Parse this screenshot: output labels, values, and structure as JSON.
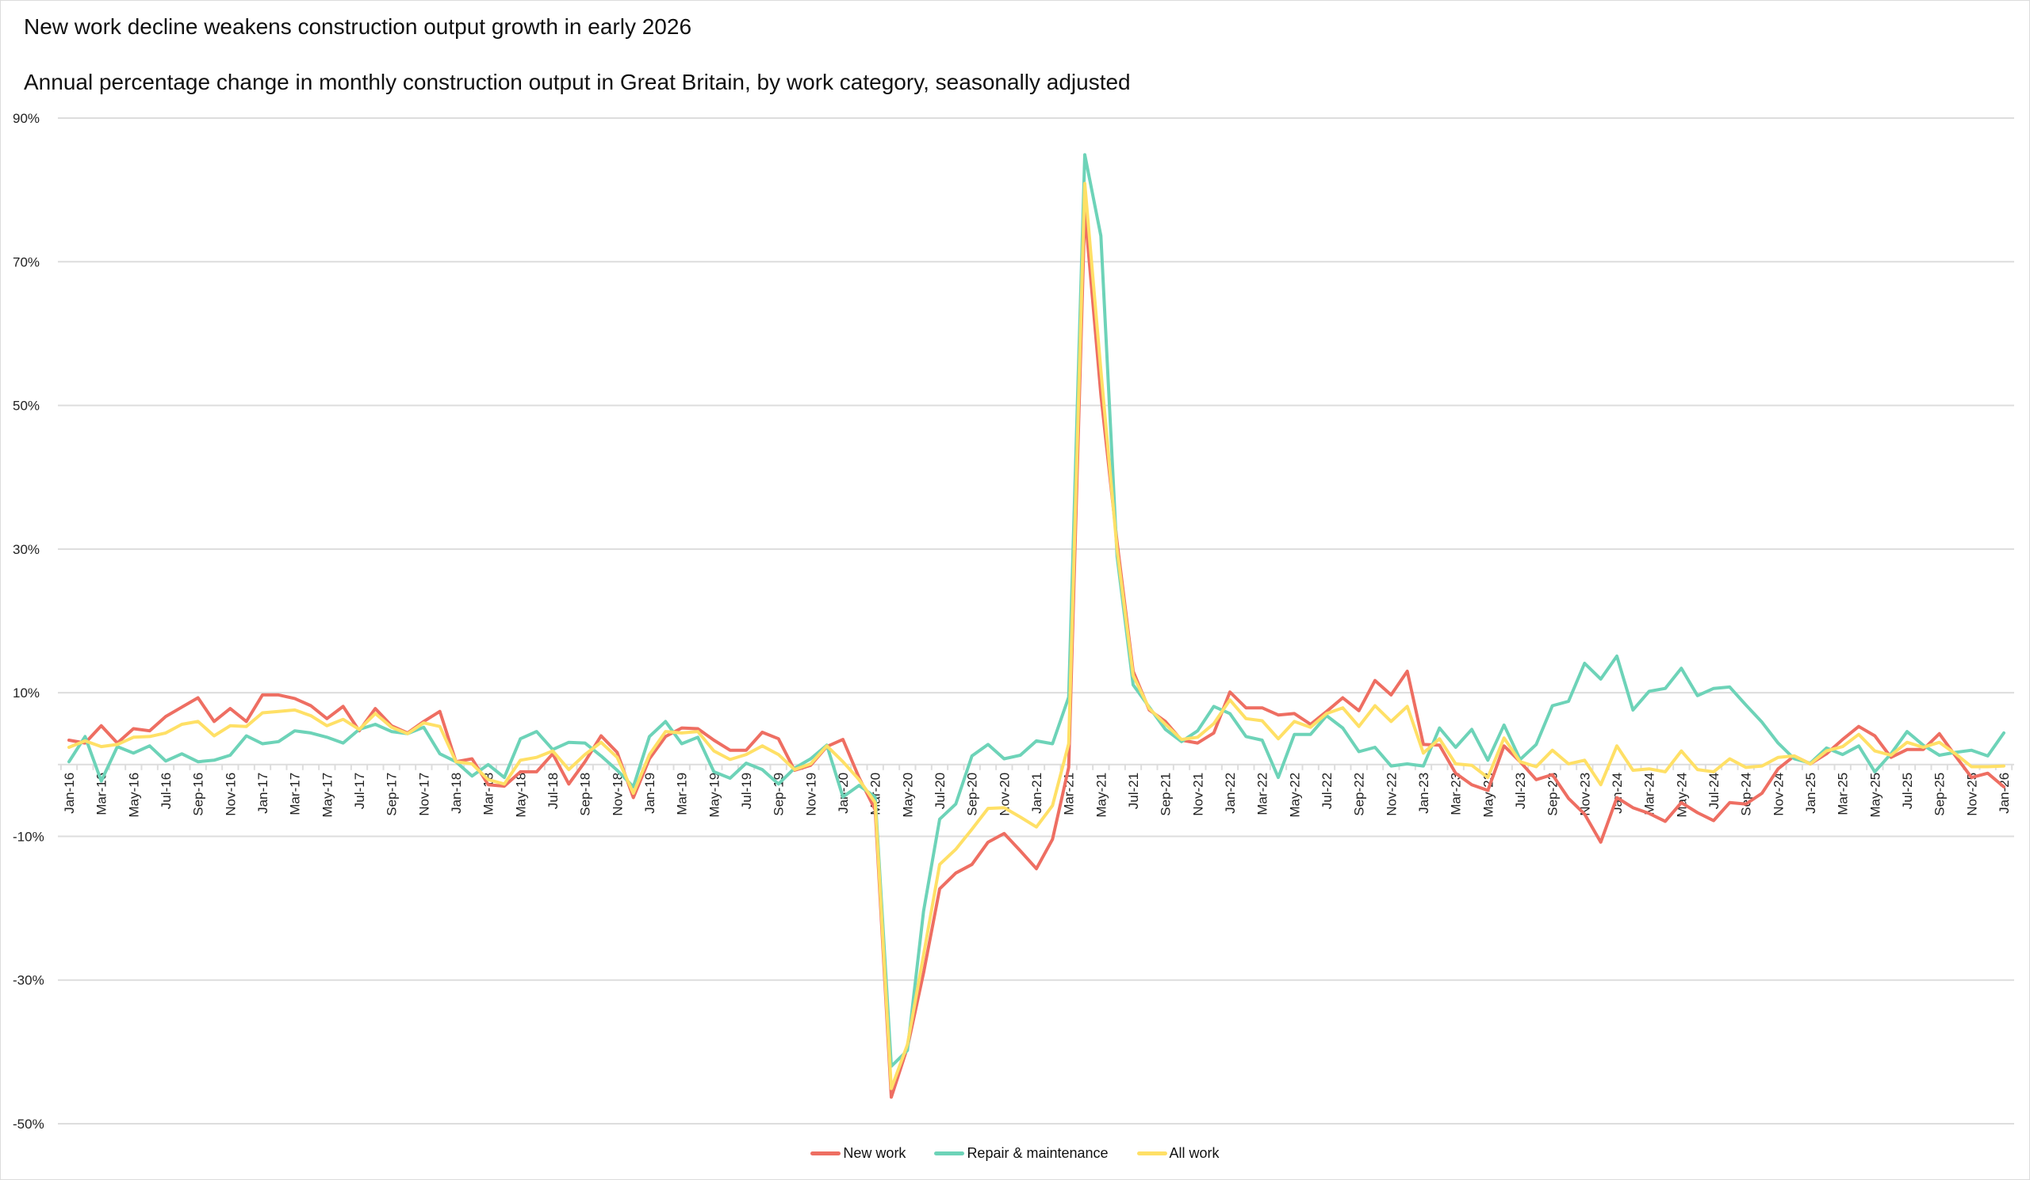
{
  "chart_data": {
    "type": "line",
    "title": "New work decline weakens construction output growth in early 2026",
    "subtitle": "Annual percentage change in monthly construction output in Great Britain, by work category, seasonally adjusted",
    "xlabel": "",
    "ylabel": "",
    "ylim": [
      -50,
      90
    ],
    "y_ticks": [
      90,
      70,
      50,
      30,
      10,
      -10,
      -30,
      -50
    ],
    "y_tick_labels": [
      "90%",
      "70%",
      "50%",
      "30%",
      "10%",
      "-10%",
      "-30%",
      "-50%"
    ],
    "grid": true,
    "legend_position": "bottom",
    "x_tick_labels": [
      "Jan-16",
      "Mar-16",
      "May-16",
      "Jul-16",
      "Sep-16",
      "Nov-16",
      "Jan-17",
      "Mar-17",
      "May-17",
      "Jul-17",
      "Sep-17",
      "Nov-17",
      "Jan-18",
      "Mar-18",
      "May-18",
      "Jul-18",
      "Sep-18",
      "Nov-18",
      "Jan-19",
      "Mar-19",
      "May-19",
      "Jul-19",
      "Sep-19",
      "Nov-19",
      "Jan-20",
      "Mar-20",
      "May-20",
      "Jul-20",
      "Sep-20",
      "Nov-20",
      "Jan-21",
      "Mar-21",
      "May-21",
      "Jul-21",
      "Sep-21",
      "Nov-21",
      "Jan-22",
      "Mar-22",
      "May-22",
      "Jul-22",
      "Sep-22",
      "Nov-22",
      "Jan-23",
      "Mar-23",
      "May-23",
      "Jul-23",
      "Sep-23",
      "Nov-23",
      "Jan-24",
      "Mar-24",
      "May-24",
      "Jul-24",
      "Sep-24",
      "Nov-24",
      "Jan-25",
      "Mar-25",
      "May-25",
      "Jul-25",
      "Sep-25",
      "Nov-25",
      "Jan-26"
    ],
    "series": [
      {
        "name": "New work",
        "color": "#EE6E62",
        "values": [
          3.4,
          3.0,
          5.4,
          3.0,
          5.0,
          4.7,
          6.7,
          8.0,
          9.3,
          6.0,
          7.8,
          6.0,
          9.7,
          9.7,
          9.2,
          8.2,
          6.4,
          8.1,
          4.7,
          7.8,
          5.4,
          4.4,
          6.0,
          7.4,
          0.4,
          0.8,
          -2.8,
          -3.0,
          -1.0,
          -1.0,
          1.5,
          -2.7,
          0.4,
          4.0,
          1.7,
          -4.6,
          0.8,
          3.9,
          5.1,
          5.0,
          3.4,
          2.0,
          2.0,
          4.5,
          3.6,
          -0.8,
          -0.1,
          2.5,
          3.5,
          -1.8,
          -6.3,
          -46.3,
          -39.4,
          -29.0,
          -17.3,
          -15.1,
          -13.9,
          -10.8,
          -9.6,
          -12.0,
          -14.5,
          -10.4,
          -0.4,
          77.2,
          51.5,
          31.0,
          13.0,
          7.6,
          6.0,
          3.4,
          3.0,
          4.4,
          10.1,
          7.9,
          7.9,
          6.9,
          7.1,
          5.6,
          7.4,
          9.3,
          7.5,
          11.7,
          9.7,
          13.0,
          2.8,
          2.7,
          -1.2,
          -2.8,
          -3.6,
          2.6,
          0.4,
          -2.1,
          -1.4,
          -4.7,
          -6.9,
          -10.8,
          -4.6,
          -6.0,
          -6.8,
          -7.9,
          -5.3,
          -6.7,
          -7.8,
          -5.3,
          -5.5,
          -4.0,
          -0.6,
          1.2,
          0.1,
          1.5,
          3.5,
          5.3,
          4.0,
          1.0,
          2.1,
          2.1,
          4.3,
          1.2,
          -1.8,
          -1.2,
          -3.1
        ]
      },
      {
        "name": "Repair & maintenance",
        "color": "#6DD3B8",
        "values": [
          0.4,
          3.9,
          -2.3,
          2.5,
          1.6,
          2.6,
          0.5,
          1.5,
          0.4,
          0.6,
          1.3,
          4.0,
          2.9,
          3.2,
          4.7,
          4.4,
          3.8,
          3.0,
          4.9,
          5.6,
          4.6,
          4.3,
          5.2,
          1.5,
          0.4,
          -1.6,
          0.0,
          -1.8,
          3.6,
          4.6,
          2.1,
          3.1,
          3.0,
          1.2,
          -0.8,
          -3.1,
          3.9,
          6.0,
          2.9,
          3.8,
          -1.0,
          -1.9,
          0.2,
          -0.7,
          -2.7,
          -0.5,
          0.8,
          2.7,
          -4.5,
          -2.9,
          -4.5,
          -42.0,
          -39.8,
          -20.4,
          -7.6,
          -5.5,
          1.2,
          2.8,
          0.8,
          1.3,
          3.3,
          2.9,
          9.4,
          84.9,
          73.6,
          29.0,
          11.1,
          8.0,
          4.9,
          3.2,
          4.7,
          8.1,
          7.1,
          3.9,
          3.4,
          -1.8,
          4.2,
          4.2,
          6.8,
          5.1,
          1.8,
          2.4,
          -0.2,
          0.1,
          -0.2,
          5.1,
          2.4,
          4.9,
          0.6,
          5.5,
          0.7,
          2.8,
          8.2,
          8.8,
          14.1,
          11.9,
          15.1,
          7.6,
          10.2,
          10.6,
          13.4,
          9.6,
          10.6,
          10.8,
          8.3,
          5.9,
          3.0,
          0.8,
          0.2,
          2.3,
          1.4,
          2.6,
          -1.0,
          1.5,
          4.6,
          2.7,
          1.3,
          1.7,
          2.0,
          1.2,
          4.4
        ]
      },
      {
        "name": "All work",
        "color": "#FFE066",
        "values": [
          2.4,
          3.3,
          2.5,
          2.8,
          3.8,
          3.9,
          4.4,
          5.6,
          6.0,
          4.0,
          5.4,
          5.3,
          7.2,
          7.4,
          7.6,
          6.8,
          5.4,
          6.3,
          4.9,
          7.1,
          5.2,
          4.3,
          5.8,
          5.3,
          0.4,
          0.1,
          -2.1,
          -2.7,
          0.6,
          1.0,
          1.9,
          -0.7,
          1.4,
          3.1,
          1.0,
          -4.0,
          1.4,
          4.6,
          4.4,
          4.6,
          1.9,
          0.7,
          1.4,
          2.6,
          1.4,
          -0.7,
          0.1,
          2.6,
          0.4,
          -2.1,
          -5.3,
          -45.1,
          -39.0,
          -26.5,
          -13.9,
          -11.8,
          -9.0,
          -6.1,
          -6.0,
          -7.3,
          -8.7,
          -5.7,
          2.9,
          80.9,
          54.9,
          30.0,
          12.4,
          7.8,
          5.6,
          3.5,
          3.8,
          5.7,
          9.0,
          6.4,
          6.1,
          3.6,
          6.0,
          5.2,
          7.1,
          7.9,
          5.3,
          8.2,
          6.0,
          8.1,
          1.6,
          3.6,
          0.1,
          -0.1,
          -1.8,
          3.7,
          0.4,
          -0.3,
          2.0,
          0.1,
          0.6,
          -2.8,
          2.6,
          -0.8,
          -0.6,
          -1.0,
          1.9,
          -0.7,
          -1.0,
          0.8,
          -0.4,
          -0.2,
          1.0,
          1.2,
          0.1,
          1.9,
          2.5,
          4.2,
          1.9,
          1.3,
          3.1,
          2.4,
          3.1,
          1.5,
          -0.3,
          -0.3,
          -0.2
        ]
      }
    ]
  }
}
